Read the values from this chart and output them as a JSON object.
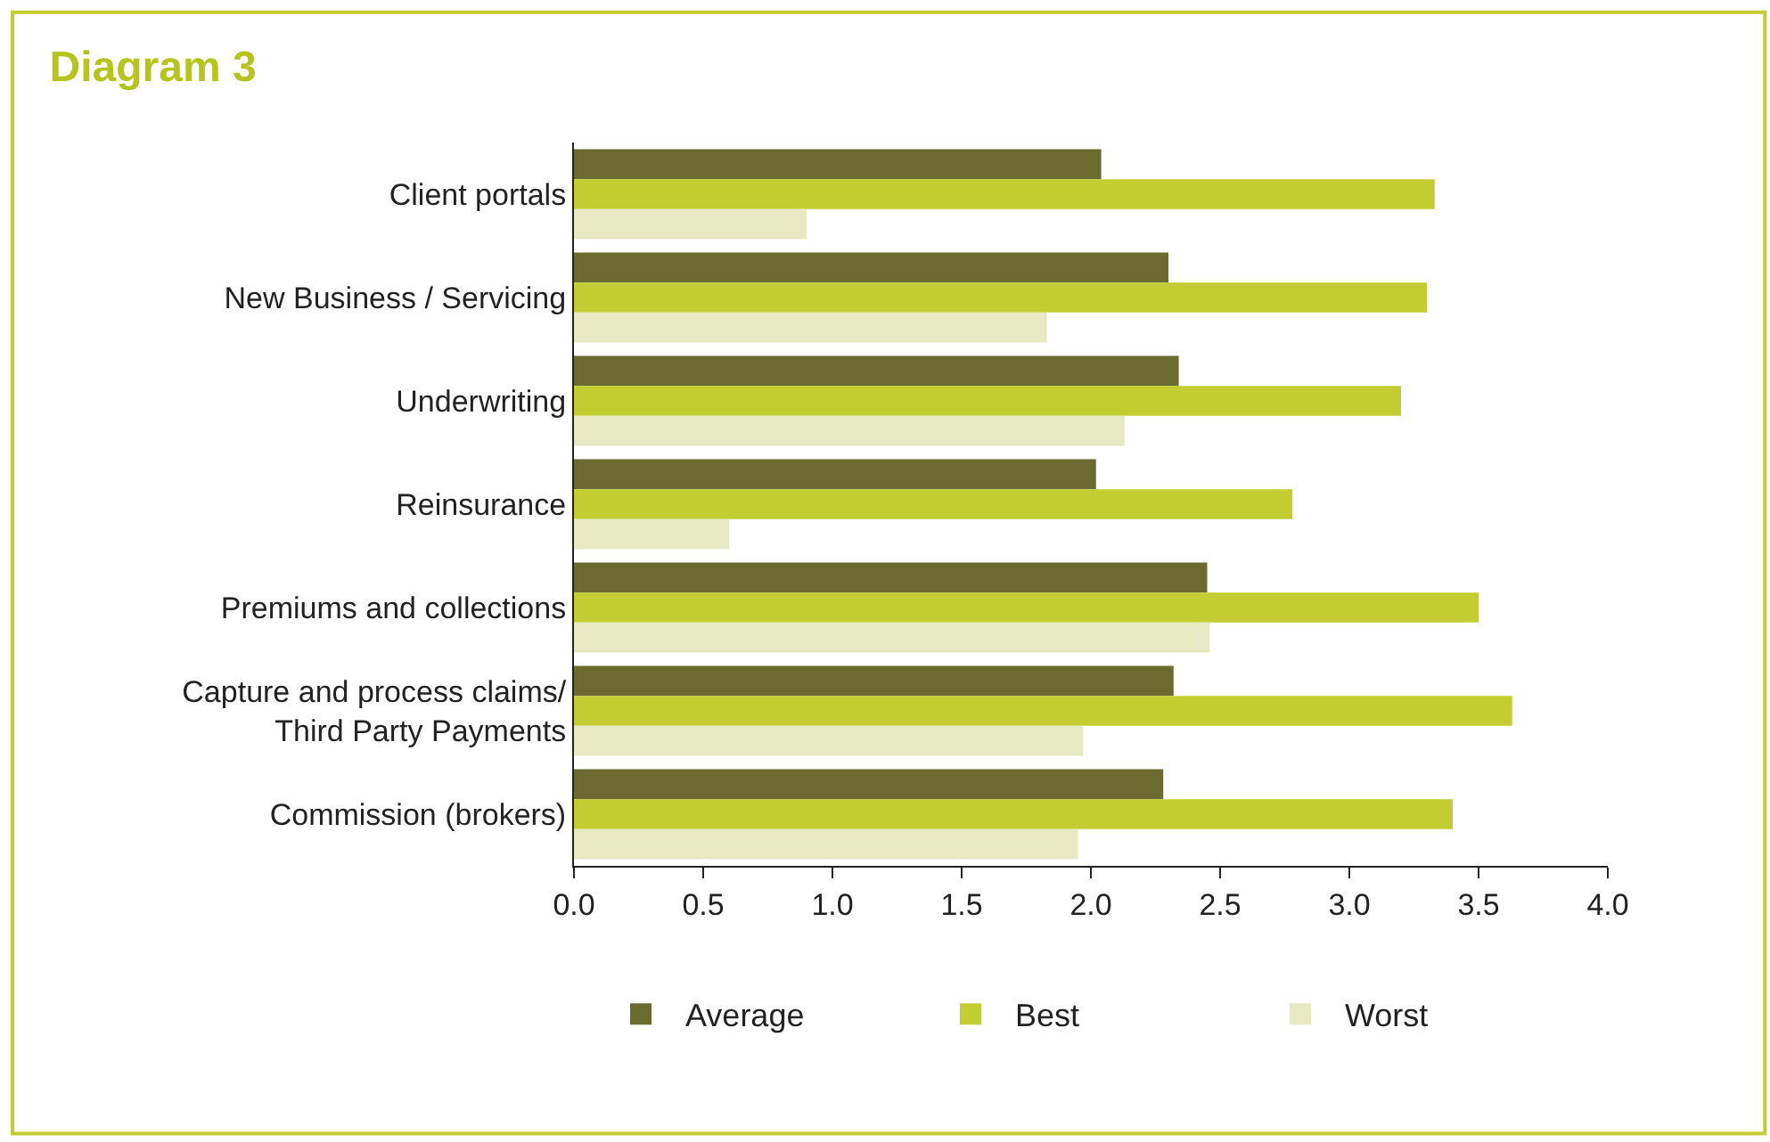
{
  "chart_data": {
    "type": "bar",
    "title": "Diagram 3",
    "orientation": "horizontal",
    "categories": [
      "Client portals",
      "New Business / Servicing",
      "Underwriting",
      "Reinsurance",
      "Premiums and collections",
      "Capture and process claims/\nThird Party Payments",
      "Commission (brokers)"
    ],
    "series": [
      {
        "name": "Average",
        "color": "#6b6a2f",
        "values": [
          2.04,
          2.3,
          2.34,
          2.02,
          2.45,
          2.32,
          2.28
        ]
      },
      {
        "name": "Best",
        "color": "#c3cc30",
        "values": [
          3.33,
          3.3,
          3.2,
          2.78,
          3.5,
          3.63,
          3.4
        ]
      },
      {
        "name": "Worst",
        "color": "#e6e9c2",
        "values": [
          0.9,
          1.83,
          2.13,
          0.6,
          2.46,
          1.97,
          1.95
        ]
      }
    ],
    "xlim": [
      0,
      4
    ],
    "xticks": [
      {
        "value": 0,
        "label": "0.0"
      },
      {
        "value": 0.5,
        "label": "0.5"
      },
      {
        "value": 1,
        "label": "1.0"
      },
      {
        "value": 1.5,
        "label": "1.5"
      },
      {
        "value": 2,
        "label": "2.0"
      },
      {
        "value": 2.5,
        "label": "2.5"
      },
      {
        "value": 3,
        "label": "3.0"
      },
      {
        "value": 3.5,
        "label": "3.5"
      },
      {
        "value": 4,
        "label": "4.0"
      }
    ],
    "legend": "bottom"
  }
}
